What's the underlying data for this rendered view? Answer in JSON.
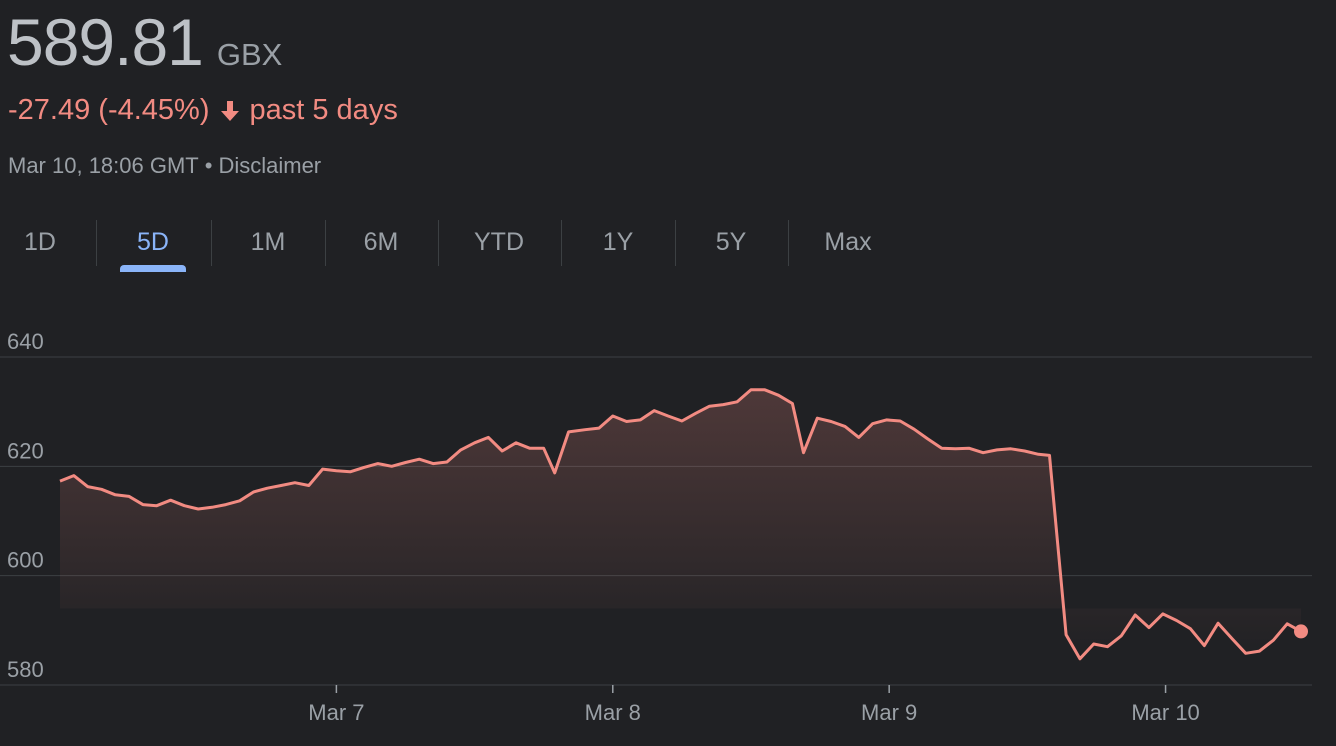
{
  "header": {
    "price": "589.81",
    "currency": "GBX",
    "change_text": "-27.49 (-4.45%)",
    "period_text": "past 5 days",
    "timestamp": "Mar 10, 18:06 GMT",
    "separator": "•",
    "disclaimer": "Disclaimer"
  },
  "tabs": [
    {
      "label": "1D"
    },
    {
      "label": "5D"
    },
    {
      "label": "1M"
    },
    {
      "label": "6M"
    },
    {
      "label": "YTD"
    },
    {
      "label": "1Y"
    },
    {
      "label": "5Y"
    },
    {
      "label": "Max"
    }
  ],
  "active_tab": "5D",
  "colors": {
    "background": "#202124",
    "line": "#f28b82",
    "active_tab": "#8ab4f8",
    "text": "#9aa0a6"
  },
  "chart_data": {
    "type": "area",
    "title": "",
    "xlabel": "",
    "ylabel": "",
    "ylim": [
      580,
      640
    ],
    "y_ticks": [
      640,
      620,
      600,
      580
    ],
    "y_tick_labels": [
      "640",
      "620",
      "600",
      "580"
    ],
    "x_ticks": [
      {
        "label": "Mar 7",
        "x": 1
      },
      {
        "label": "Mar 8",
        "x": 2
      },
      {
        "label": "Mar 9",
        "x": 3
      },
      {
        "label": "Mar 10",
        "x": 4
      }
    ],
    "grid": true,
    "series": [
      {
        "values": [
          [
            0.0,
            617.3
          ],
          [
            0.05,
            618.3
          ],
          [
            0.1,
            616.3
          ],
          [
            0.15,
            615.8
          ],
          [
            0.2,
            614.8
          ],
          [
            0.25,
            614.5
          ],
          [
            0.3,
            613.0
          ],
          [
            0.35,
            612.8
          ],
          [
            0.4,
            613.8
          ],
          [
            0.45,
            612.8
          ],
          [
            0.5,
            612.2
          ],
          [
            0.55,
            612.5
          ],
          [
            0.6,
            613.0
          ],
          [
            0.65,
            613.7
          ],
          [
            0.7,
            615.3
          ],
          [
            0.75,
            616.0
          ],
          [
            0.8,
            616.5
          ],
          [
            0.85,
            617.0
          ],
          [
            0.9,
            616.5
          ],
          [
            0.95,
            619.5
          ],
          [
            1.0,
            619.2
          ],
          [
            1.05,
            619.0
          ],
          [
            1.1,
            619.8
          ],
          [
            1.15,
            620.5
          ],
          [
            1.2,
            620.0
          ],
          [
            1.25,
            620.7
          ],
          [
            1.3,
            621.3
          ],
          [
            1.35,
            620.5
          ],
          [
            1.4,
            620.8
          ],
          [
            1.45,
            623.0
          ],
          [
            1.5,
            624.3
          ],
          [
            1.55,
            625.3
          ],
          [
            1.6,
            622.8
          ],
          [
            1.65,
            624.3
          ],
          [
            1.7,
            623.3
          ],
          [
            1.75,
            623.3
          ],
          [
            1.79,
            618.8
          ],
          [
            1.84,
            626.3
          ],
          [
            1.9,
            626.7
          ],
          [
            1.95,
            627.0
          ],
          [
            2.0,
            629.2
          ],
          [
            2.05,
            628.2
          ],
          [
            2.1,
            628.5
          ],
          [
            2.15,
            630.2
          ],
          [
            2.2,
            629.2
          ],
          [
            2.25,
            628.3
          ],
          [
            2.3,
            629.7
          ],
          [
            2.35,
            631.0
          ],
          [
            2.4,
            631.3
          ],
          [
            2.45,
            631.8
          ],
          [
            2.5,
            634.0
          ],
          [
            2.55,
            634.0
          ],
          [
            2.6,
            633.0
          ],
          [
            2.65,
            631.5
          ],
          [
            2.69,
            622.5
          ],
          [
            2.74,
            628.8
          ],
          [
            2.79,
            628.2
          ],
          [
            2.84,
            627.3
          ],
          [
            2.89,
            625.3
          ],
          [
            2.94,
            627.8
          ],
          [
            2.99,
            628.5
          ],
          [
            3.04,
            628.3
          ],
          [
            3.09,
            626.8
          ],
          [
            3.14,
            625.0
          ],
          [
            3.19,
            623.3
          ],
          [
            3.24,
            623.2
          ],
          [
            3.29,
            623.3
          ],
          [
            3.34,
            622.5
          ],
          [
            3.39,
            623.0
          ],
          [
            3.44,
            623.2
          ],
          [
            3.49,
            622.8
          ],
          [
            3.54,
            622.2
          ],
          [
            3.58,
            622.0
          ],
          [
            3.64,
            589.2
          ],
          [
            3.69,
            584.8
          ],
          [
            3.74,
            587.5
          ],
          [
            3.79,
            587.0
          ],
          [
            3.84,
            589.0
          ],
          [
            3.89,
            592.8
          ],
          [
            3.94,
            590.5
          ],
          [
            3.99,
            593.0
          ],
          [
            4.04,
            591.8
          ],
          [
            4.09,
            590.3
          ],
          [
            4.14,
            587.2
          ],
          [
            4.19,
            591.3
          ],
          [
            4.24,
            588.5
          ],
          [
            4.29,
            585.8
          ],
          [
            4.34,
            586.2
          ],
          [
            4.39,
            588.2
          ],
          [
            4.44,
            591.2
          ],
          [
            4.49,
            589.8
          ]
        ]
      }
    ]
  }
}
